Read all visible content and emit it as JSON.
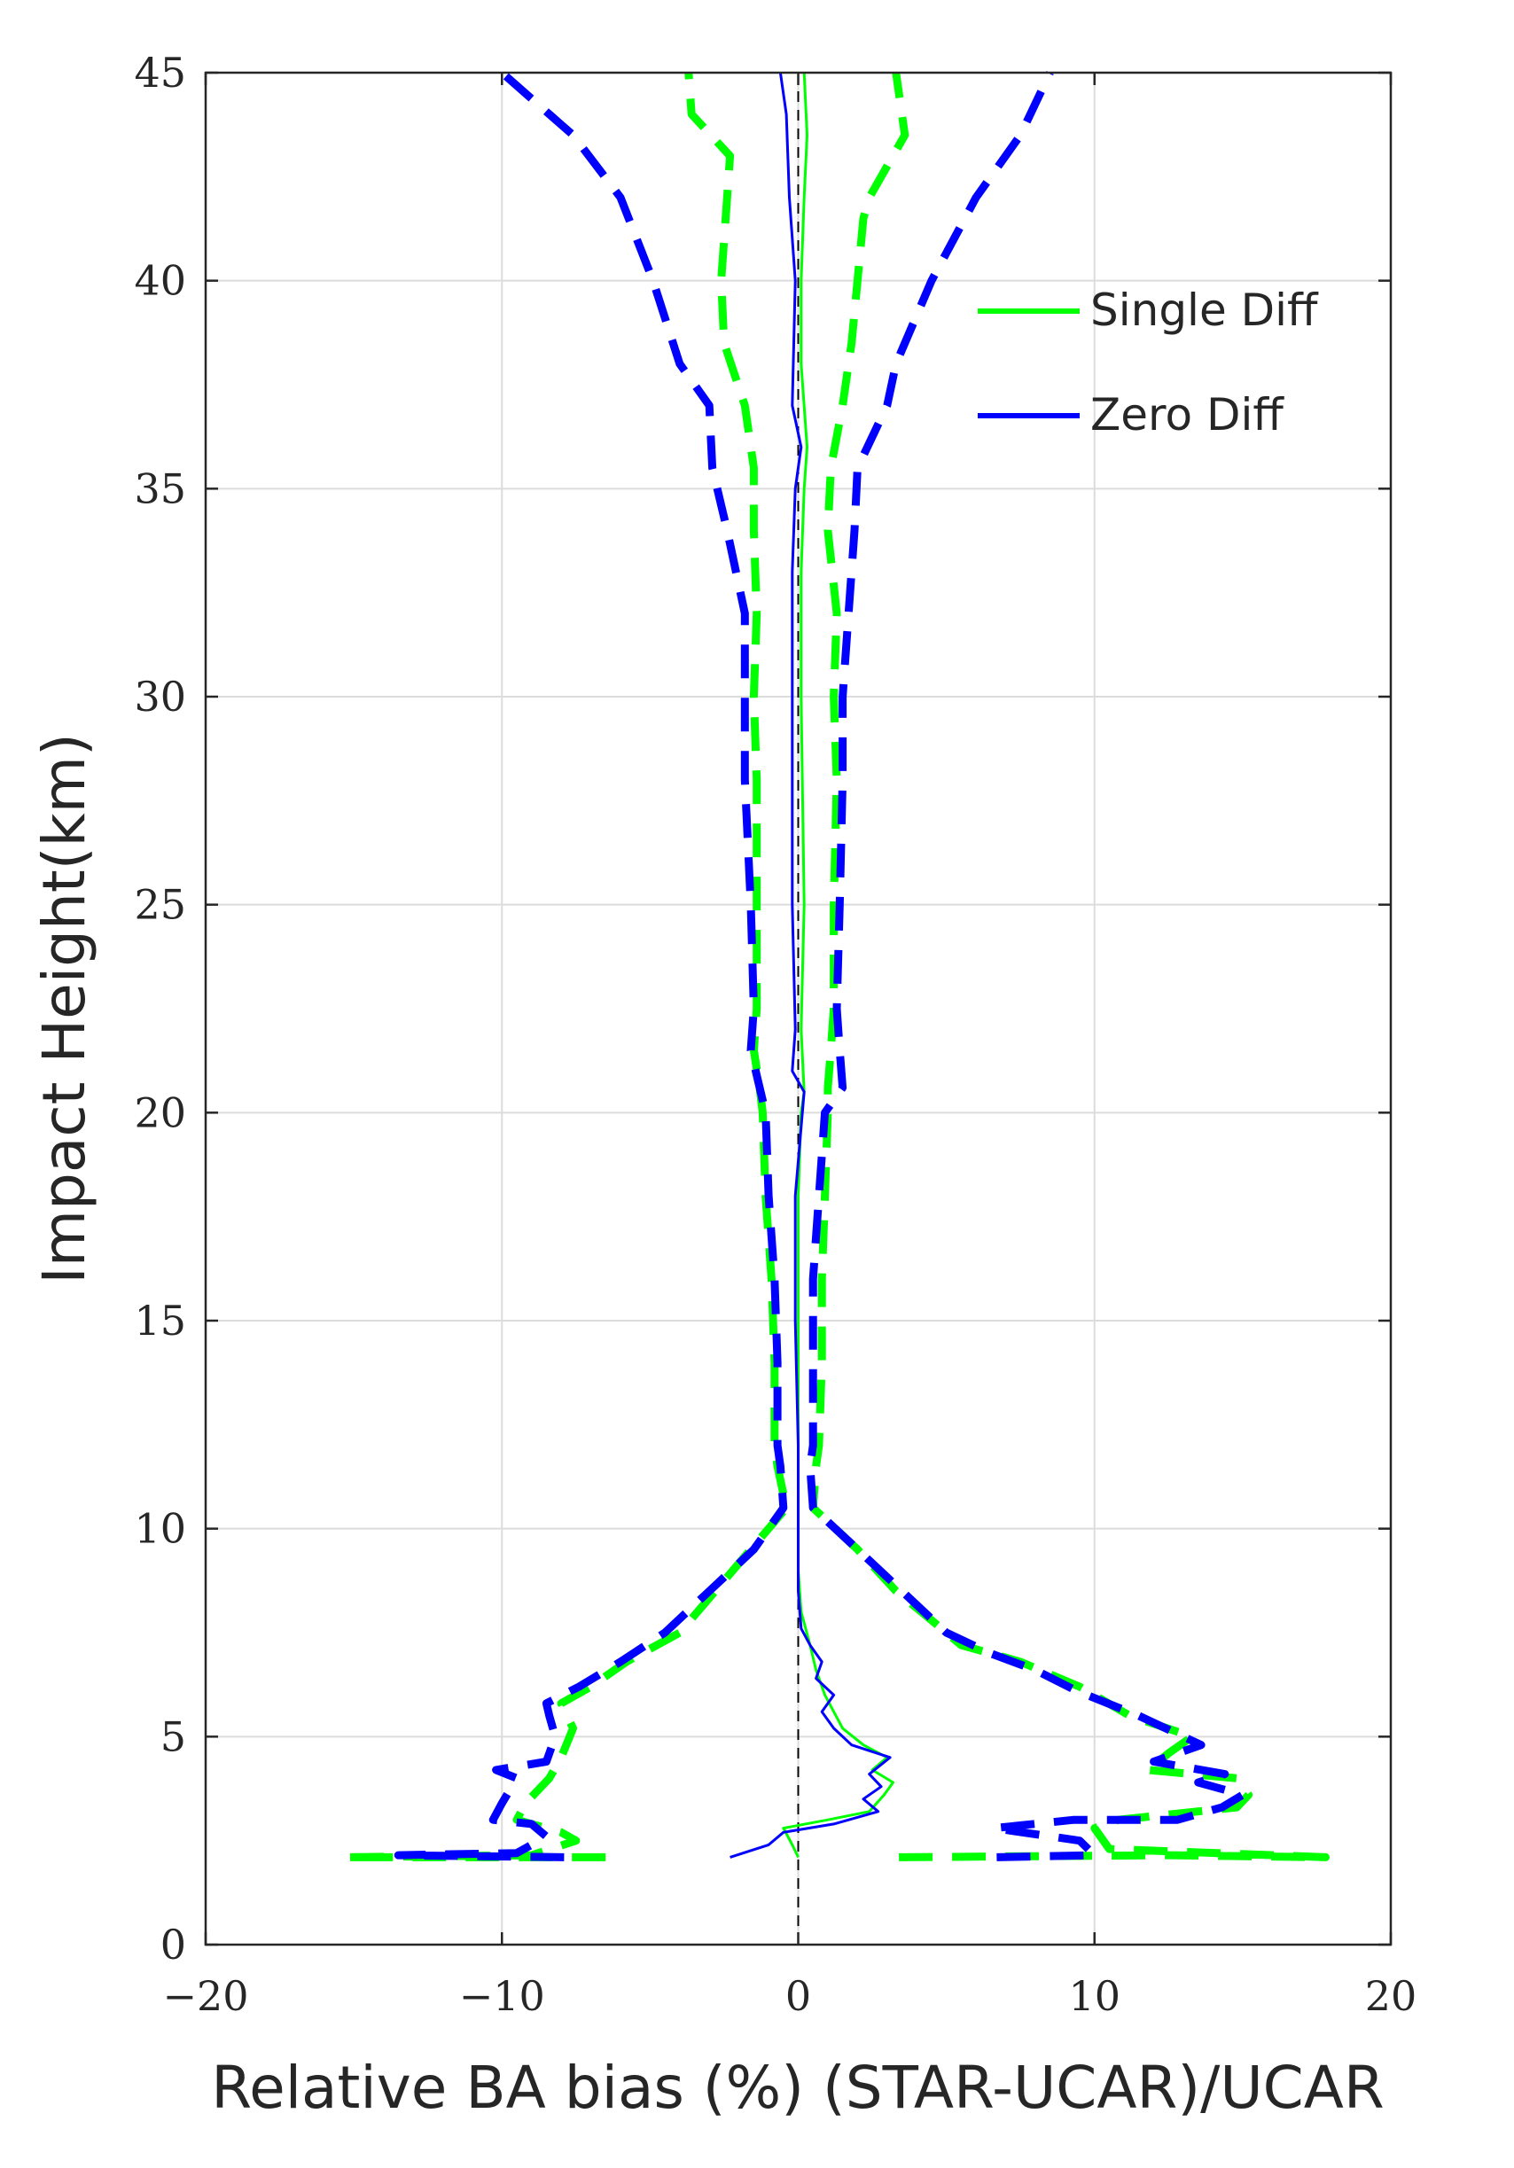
{
  "chart_data": {
    "type": "line",
    "title": "",
    "xlabel": "Relative BA bias (%) (STAR-UCAR)/UCAR",
    "ylabel": "Impact Height(km)",
    "xlim": [
      -20,
      20
    ],
    "ylim": [
      0,
      45
    ],
    "xticks": [
      -20,
      -10,
      0,
      10,
      20
    ],
    "xtick_labels": [
      "−20",
      "−10",
      "0",
      "10",
      "20"
    ],
    "yticks": [
      0,
      5,
      10,
      15,
      20,
      25,
      30,
      35,
      40,
      45
    ],
    "ytick_labels": [
      "0",
      "5",
      "10",
      "15",
      "20",
      "25",
      "30",
      "35",
      "40",
      "45"
    ],
    "grid": true,
    "legend_position": "top-right",
    "series": [
      {
        "name": "Single Diff",
        "color": "#00ff00",
        "style": "solid",
        "in_legend": true,
        "points": [
          [
            0,
            2.1
          ],
          [
            -0.2,
            2.4
          ],
          [
            -0.5,
            2.8
          ],
          [
            1.0,
            3.0
          ],
          [
            2.4,
            3.2
          ],
          [
            2.9,
            3.6
          ],
          [
            3.2,
            3.9
          ],
          [
            2.5,
            4.2
          ],
          [
            3.0,
            4.5
          ],
          [
            2.2,
            4.8
          ],
          [
            1.5,
            5.2
          ],
          [
            1.2,
            5.6
          ],
          [
            0.9,
            6.0
          ],
          [
            0.6,
            6.6
          ],
          [
            0.4,
            7.2
          ],
          [
            0.1,
            8.0
          ],
          [
            0,
            9
          ],
          [
            0,
            10
          ],
          [
            0,
            12
          ],
          [
            0,
            15
          ],
          [
            0,
            18
          ],
          [
            0.1,
            20
          ],
          [
            0.2,
            20.5
          ],
          [
            0.1,
            22
          ],
          [
            0.2,
            25
          ],
          [
            0.1,
            30
          ],
          [
            0.1,
            33
          ],
          [
            0.2,
            35
          ],
          [
            0.3,
            36
          ],
          [
            0.1,
            38
          ],
          [
            0.1,
            40
          ],
          [
            0.2,
            42
          ],
          [
            0.3,
            43.5
          ],
          [
            0.2,
            45
          ]
        ]
      },
      {
        "name": "Zero Diff",
        "color": "#0000ff",
        "style": "solid",
        "in_legend": true,
        "points": [
          [
            -2.3,
            2.1
          ],
          [
            -1.0,
            2.4
          ],
          [
            -0.5,
            2.7
          ],
          [
            1.2,
            2.9
          ],
          [
            2.7,
            3.2
          ],
          [
            2.2,
            3.5
          ],
          [
            2.8,
            3.8
          ],
          [
            2.4,
            4.1
          ],
          [
            3.1,
            4.5
          ],
          [
            1.8,
            4.8
          ],
          [
            1.2,
            5.2
          ],
          [
            0.8,
            5.6
          ],
          [
            1.2,
            6.0
          ],
          [
            0.6,
            6.4
          ],
          [
            0.8,
            6.8
          ],
          [
            0.4,
            7.2
          ],
          [
            0.1,
            7.6
          ],
          [
            0,
            8.5
          ],
          [
            0,
            10
          ],
          [
            0,
            12
          ],
          [
            -0.1,
            15
          ],
          [
            -0.1,
            18
          ],
          [
            0.2,
            20.5
          ],
          [
            -0.2,
            21
          ],
          [
            -0.1,
            22
          ],
          [
            -0.2,
            25
          ],
          [
            -0.2,
            30
          ],
          [
            -0.2,
            33
          ],
          [
            -0.1,
            35
          ],
          [
            0.1,
            36
          ],
          [
            -0.2,
            37
          ],
          [
            -0.1,
            40
          ],
          [
            -0.3,
            42
          ],
          [
            -0.4,
            44
          ],
          [
            -0.6,
            45
          ]
        ]
      },
      {
        "name": "Single Diff spread (left)",
        "color": "#00ff00",
        "style": "dashed",
        "in_legend": false,
        "points": [
          [
            -6.5,
            2.1
          ],
          [
            -15.3,
            2.1
          ],
          [
            -9,
            2.15
          ],
          [
            -7.5,
            2.5
          ],
          [
            -8,
            2.7
          ],
          [
            -9.5,
            3.0
          ],
          [
            -9.2,
            3.4
          ],
          [
            -8.4,
            4.0
          ],
          [
            -8.0,
            4.5
          ],
          [
            -7.6,
            5.2
          ],
          [
            -8.0,
            5.8
          ],
          [
            -7.0,
            6.2
          ],
          [
            -5.8,
            6.8
          ],
          [
            -4.0,
            7.5
          ],
          [
            -2.8,
            8.5
          ],
          [
            -1.6,
            9.5
          ],
          [
            -0.4,
            10.5
          ],
          [
            -0.7,
            11.5
          ],
          [
            -0.8,
            12
          ],
          [
            -0.8,
            14
          ],
          [
            -0.9,
            16
          ],
          [
            -1.1,
            18
          ],
          [
            -1.2,
            20
          ],
          [
            -1.3,
            20.6
          ],
          [
            -1.5,
            21.5
          ],
          [
            -1.4,
            22.5
          ],
          [
            -1.4,
            25
          ],
          [
            -1.4,
            28
          ],
          [
            -1.5,
            30
          ],
          [
            -1.4,
            32
          ],
          [
            -1.5,
            34
          ],
          [
            -1.5,
            35.5
          ],
          [
            -1.8,
            37
          ],
          [
            -2.5,
            38.5
          ],
          [
            -2.6,
            40
          ],
          [
            -2.4,
            42
          ],
          [
            -2.3,
            43
          ],
          [
            -3.6,
            44
          ],
          [
            -3.7,
            45
          ]
        ]
      },
      {
        "name": "Single Diff spread (right)",
        "color": "#00ff00",
        "style": "dashed",
        "in_legend": false,
        "points": [
          [
            3.4,
            2.1
          ],
          [
            12.5,
            2.15
          ],
          [
            17.8,
            2.1
          ],
          [
            10.5,
            2.3
          ],
          [
            10.0,
            2.8
          ],
          [
            10.8,
            3.0
          ],
          [
            14.8,
            3.3
          ],
          [
            15.2,
            3.6
          ],
          [
            14.8,
            4.0
          ],
          [
            11.8,
            4.2
          ],
          [
            12.5,
            4.6
          ],
          [
            13.3,
            5.0
          ],
          [
            11.2,
            5.5
          ],
          [
            9.5,
            6.2
          ],
          [
            7.5,
            6.8
          ],
          [
            5.5,
            7.2
          ],
          [
            4.5,
            7.8
          ],
          [
            3.3,
            8.5
          ],
          [
            2.0,
            9.5
          ],
          [
            0.5,
            10.5
          ],
          [
            0.6,
            11.5
          ],
          [
            0.7,
            12
          ],
          [
            0.8,
            14
          ],
          [
            0.8,
            16
          ],
          [
            0.9,
            18
          ],
          [
            1.0,
            20
          ],
          [
            1.0,
            20.6
          ],
          [
            1.1,
            21.5
          ],
          [
            1.2,
            22.5
          ],
          [
            1.2,
            25
          ],
          [
            1.3,
            28
          ],
          [
            1.2,
            30
          ],
          [
            1.3,
            32
          ],
          [
            1.0,
            34
          ],
          [
            1.1,
            35.5
          ],
          [
            1.5,
            37
          ],
          [
            1.8,
            38.5
          ],
          [
            2.0,
            40
          ],
          [
            2.2,
            41.5
          ],
          [
            2.4,
            42
          ],
          [
            3.6,
            43.5
          ],
          [
            3.3,
            45
          ]
        ]
      },
      {
        "name": "Zero Diff spread (left)",
        "color": "#0000ff",
        "style": "dashed",
        "in_legend": false,
        "points": [
          [
            -7.9,
            2.1
          ],
          [
            -13.5,
            2.15
          ],
          [
            -9.5,
            2.2
          ],
          [
            -8.5,
            2.6
          ],
          [
            -9.0,
            2.9
          ],
          [
            -10.3,
            3.0
          ],
          [
            -10.0,
            3.4
          ],
          [
            -9.5,
            4.0
          ],
          [
            -10.2,
            4.2
          ],
          [
            -8.5,
            4.4
          ],
          [
            -8.2,
            5.0
          ],
          [
            -8.4,
            5.5
          ],
          [
            -8.5,
            5.8
          ],
          [
            -7.4,
            6.2
          ],
          [
            -6.0,
            6.8
          ],
          [
            -4.5,
            7.5
          ],
          [
            -3.0,
            8.5
          ],
          [
            -1.5,
            9.5
          ],
          [
            -0.5,
            10.5
          ],
          [
            -0.6,
            11.5
          ],
          [
            -0.7,
            12
          ],
          [
            -0.7,
            14
          ],
          [
            -0.8,
            16
          ],
          [
            -1.0,
            18
          ],
          [
            -1.1,
            20
          ],
          [
            -1.3,
            20.6
          ],
          [
            -1.6,
            21.5
          ],
          [
            -1.5,
            22.5
          ],
          [
            -1.6,
            25
          ],
          [
            -1.8,
            28
          ],
          [
            -1.8,
            30
          ],
          [
            -1.8,
            32
          ],
          [
            -2.4,
            34
          ],
          [
            -2.9,
            35.5
          ],
          [
            -3.0,
            37
          ],
          [
            -4.0,
            38
          ],
          [
            -4.9,
            40
          ],
          [
            -6.0,
            42
          ],
          [
            -7.6,
            43.5
          ],
          [
            -10.0,
            45
          ]
        ]
      },
      {
        "name": "Zero Diff spread (right)",
        "color": "#0000ff",
        "style": "dashed",
        "in_legend": false,
        "points": [
          [
            6.7,
            2.1
          ],
          [
            10.0,
            2.15
          ],
          [
            9.5,
            2.5
          ],
          [
            6.6,
            2.8
          ],
          [
            9.3,
            3.0
          ],
          [
            12.8,
            3.0
          ],
          [
            14.3,
            3.3
          ],
          [
            15.0,
            3.6
          ],
          [
            13.5,
            3.9
          ],
          [
            14.4,
            4.1
          ],
          [
            12.0,
            4.4
          ],
          [
            13.6,
            4.8
          ],
          [
            13.0,
            5.0
          ],
          [
            11.5,
            5.5
          ],
          [
            9.4,
            6.1
          ],
          [
            8.0,
            6.6
          ],
          [
            6.5,
            7.0
          ],
          [
            5.0,
            7.5
          ],
          [
            3.5,
            8.5
          ],
          [
            2.0,
            9.5
          ],
          [
            0.5,
            10.5
          ],
          [
            0.4,
            11.5
          ],
          [
            0.5,
            12
          ],
          [
            0.5,
            14
          ],
          [
            0.5,
            16
          ],
          [
            0.7,
            18
          ],
          [
            0.9,
            20
          ],
          [
            1.5,
            20.6
          ],
          [
            1.4,
            21.5
          ],
          [
            1.3,
            22.5
          ],
          [
            1.4,
            25
          ],
          [
            1.5,
            28
          ],
          [
            1.5,
            30
          ],
          [
            1.7,
            32
          ],
          [
            1.9,
            34
          ],
          [
            2.0,
            35.5
          ],
          [
            3.0,
            37
          ],
          [
            3.3,
            38
          ],
          [
            4.5,
            40
          ],
          [
            6.0,
            42
          ],
          [
            7.5,
            43.5
          ],
          [
            8.5,
            45
          ]
        ]
      }
    ]
  }
}
